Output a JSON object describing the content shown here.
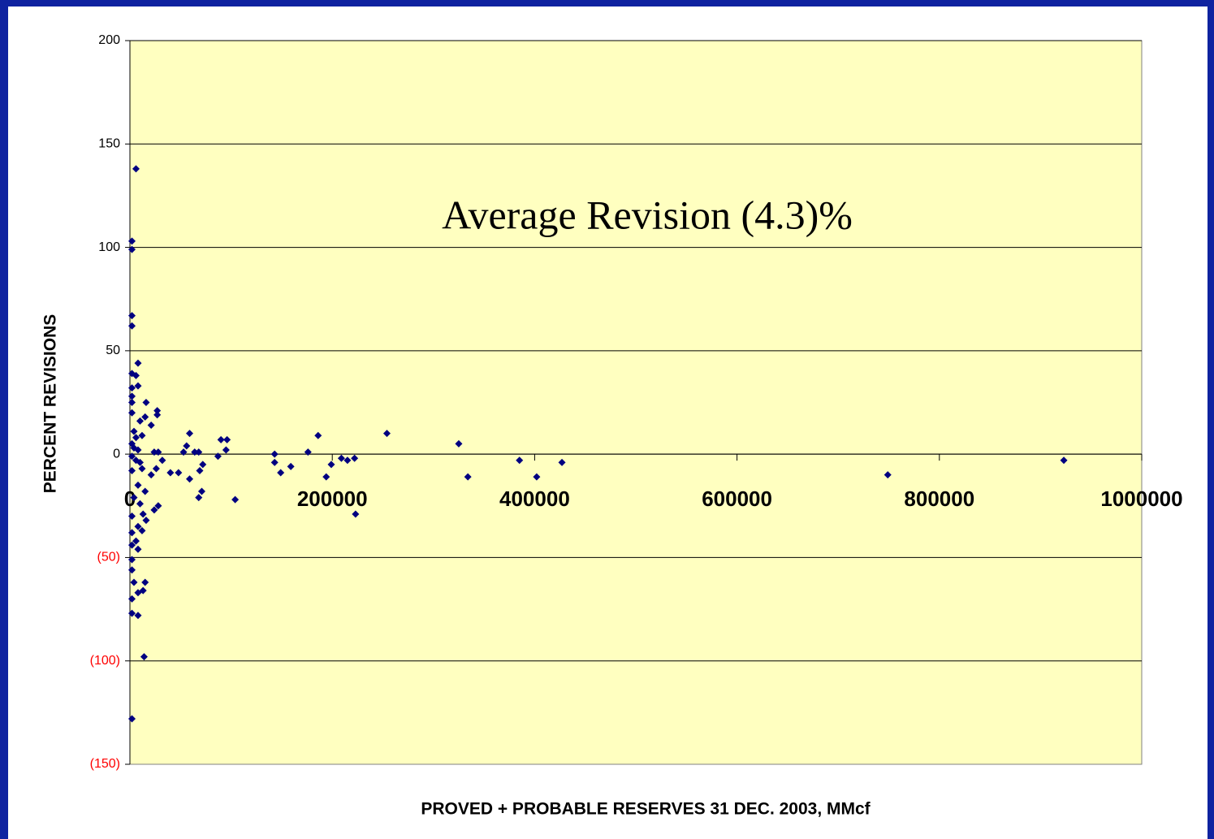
{
  "chart_data": {
    "type": "scatter",
    "annotation": "Average Revision (4.3)%",
    "xlabel": "PROVED + PROBABLE RESERVES 31 DEC. 2003, MMcf",
    "ylabel": "PERCENT REVISIONS",
    "color": "#000080",
    "plot_background": "#ffffc0",
    "ytick_negative_color": "#ff0000",
    "grid": true,
    "xlim": [
      0,
      1000000
    ],
    "xticks": [
      0,
      200000,
      400000,
      600000,
      800000,
      1000000
    ],
    "ylim": [
      -150,
      200
    ],
    "yticks": [
      {
        "value": -150,
        "label": "(150)"
      },
      {
        "value": -100,
        "label": "(100)"
      },
      {
        "value": -50,
        "label": "(50)"
      },
      0,
      50,
      100,
      150,
      200
    ],
    "x": [
      6000,
      2000,
      2000,
      2000,
      2000,
      8000,
      2000,
      6000,
      8000,
      2000,
      2000,
      2000,
      16000,
      2000,
      10000,
      15000,
      21000,
      27000,
      27000,
      4000,
      6000,
      12000,
      2000,
      4000,
      8000,
      24000,
      28000,
      2000,
      6000,
      10000,
      32000,
      12000,
      2000,
      26000,
      21000,
      8000,
      15000,
      4000,
      10000,
      28000,
      24000,
      13000,
      2000,
      16000,
      8000,
      12000,
      2000,
      6000,
      2000,
      8000,
      2000,
      2000,
      15000,
      4000,
      13000,
      8000,
      2000,
      2000,
      8000,
      14000,
      2000,
      59000,
      56000,
      53000,
      40000,
      48000,
      59000,
      68000,
      64000,
      68000,
      71000,
      72000,
      69000,
      87000,
      90000,
      96000,
      95000,
      104000,
      143000,
      143000,
      149000,
      159000,
      176000,
      186000,
      194000,
      199000,
      209000,
      215000,
      222000,
      223000,
      254000,
      325000,
      334000,
      385000,
      402000,
      427000,
      749000,
      923000
    ],
    "values": [
      138,
      103,
      99,
      67,
      62,
      44,
      39,
      38,
      33,
      32,
      28,
      25,
      25,
      20,
      16,
      18,
      14,
      21,
      19,
      11,
      8,
      9,
      5,
      3,
      2,
      1,
      1,
      -1,
      -3,
      -4,
      -3,
      -7,
      -8,
      -7,
      -10,
      -15,
      -18,
      -21,
      -24,
      -25,
      -27,
      -29,
      -30,
      -32,
      -35,
      -37,
      -38,
      -42,
      -44,
      -46,
      -51,
      -56,
      -62,
      -62,
      -66,
      -67,
      -70,
      -77,
      -78,
      -98,
      -128,
      10,
      4,
      1,
      -9,
      -9,
      -12,
      1,
      1,
      -21,
      -18,
      -5,
      -8,
      -1,
      7,
      7,
      2,
      -22,
      0,
      -4,
      -9,
      -6,
      1,
      9,
      -11,
      -5,
      -2,
      -3,
      -2,
      -29,
      10,
      5,
      -11,
      -3,
      -11,
      -4,
      -10,
      -3
    ]
  }
}
